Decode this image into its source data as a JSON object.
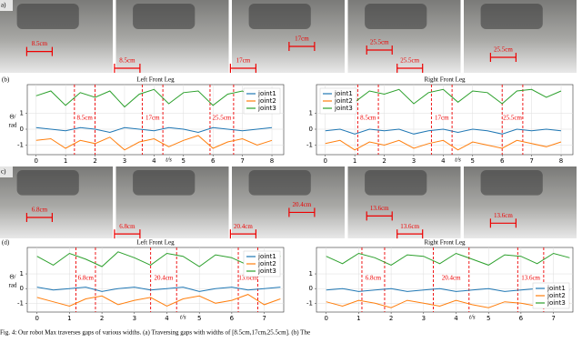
{
  "photos": [
    {
      "label": "a)",
      "images": [
        {
          "labels": [
            "8.5cm"
          ]
        },
        {
          "labels": [
            "8.5cm"
          ]
        },
        {
          "labels": [
            "17cm",
            "17cm"
          ]
        },
        {
          "labels": [
            "25.5cm",
            "25.5cm"
          ]
        },
        {
          "labels": [
            "25.5cm"
          ]
        }
      ]
    },
    {
      "label": "c)",
      "images": [
        {
          "labels": [
            "6.8cm"
          ]
        },
        {
          "labels": [
            "6.8cm"
          ]
        },
        {
          "labels": [
            "20.4cm",
            "20.4cm"
          ]
        },
        {
          "labels": [
            "13.6cm",
            "13.6cm"
          ]
        },
        {
          "labels": [
            "13.6cm"
          ]
        }
      ]
    }
  ],
  "charts": [
    {
      "type": "line",
      "panel": "(b)",
      "title": "Left Front Leg",
      "ylabel": "Θ/\nrad",
      "xlabel": "t/s",
      "xlim": [
        -0.3,
        8.4
      ],
      "ylim": [
        -1.6,
        2.8
      ],
      "xticks": [
        0,
        1,
        2,
        3,
        4,
        5,
        6,
        7,
        8
      ],
      "yticks": [
        -1,
        0,
        1
      ],
      "grid": true,
      "legend": "upper right",
      "x": [
        0,
        0.5,
        1,
        1.5,
        2,
        2.5,
        3,
        3.5,
        4,
        4.5,
        5,
        5.5,
        6,
        6.5,
        7,
        7.5,
        8
      ],
      "gaps": [
        {
          "label": "8.5cm",
          "start": 1.3,
          "end": 2.0
        },
        {
          "label": "17cm",
          "start": 3.6,
          "end": 4.3
        },
        {
          "label": "25.5cm",
          "start": 5.9,
          "end": 6.7
        }
      ],
      "series": [
        {
          "name": "joint1",
          "color": "#1f77b4",
          "values": [
            0.1,
            0.0,
            -0.1,
            0.1,
            0.0,
            -0.2,
            0.1,
            0.0,
            -0.1,
            0.1,
            0.0,
            -0.2,
            0.1,
            0.0,
            -0.1,
            0.0,
            0.1
          ]
        },
        {
          "name": "joint2",
          "color": "#ff7f0e",
          "values": [
            -0.7,
            -0.6,
            -1.2,
            -0.7,
            -0.9,
            -0.5,
            -1.3,
            -0.8,
            -0.6,
            -1.1,
            -0.7,
            -0.4,
            -1.2,
            -0.8,
            -0.6,
            -1.0,
            -0.7
          ]
        },
        {
          "name": "joint3",
          "color": "#2ca02c",
          "values": [
            2.1,
            2.4,
            1.5,
            2.3,
            2.0,
            2.4,
            1.4,
            2.2,
            2.5,
            1.6,
            2.3,
            2.4,
            1.5,
            2.2,
            2.4,
            1.8,
            2.1
          ]
        }
      ]
    },
    {
      "type": "line",
      "panel": null,
      "title": "Right Front Leg",
      "ylabel": null,
      "xlabel": "t/s",
      "xlim": [
        -0.3,
        8.4
      ],
      "ylim": [
        -1.6,
        2.8
      ],
      "xticks": [
        0,
        1,
        2,
        3,
        4,
        5,
        6,
        7,
        8
      ],
      "yticks": [
        -1,
        0,
        1
      ],
      "grid": true,
      "legend": "upper left",
      "x": [
        0,
        0.5,
        1,
        1.5,
        2,
        2.5,
        3,
        3.5,
        4,
        4.5,
        5,
        5.5,
        6,
        6.5,
        7,
        7.5,
        8
      ],
      "gaps": [
        {
          "label": "8.5cm",
          "start": 1.1,
          "end": 1.8
        },
        {
          "label": "17cm",
          "start": 3.6,
          "end": 4.3
        },
        {
          "label": "25.5cm",
          "start": 6.0,
          "end": 6.7
        }
      ],
      "series": [
        {
          "name": "joint1",
          "color": "#1f77b4",
          "values": [
            -0.1,
            0.0,
            -0.3,
            0.0,
            -0.1,
            0.0,
            -0.3,
            -0.1,
            0.0,
            -0.2,
            0.0,
            -0.1,
            -0.3,
            0.0,
            -0.1,
            0.0,
            -0.1
          ]
        },
        {
          "name": "joint2",
          "color": "#ff7f0e",
          "values": [
            -0.9,
            -0.7,
            -1.3,
            -0.8,
            -1.0,
            -0.7,
            -1.2,
            -0.9,
            -0.7,
            -1.3,
            -0.8,
            -1.0,
            -1.2,
            -0.7,
            -0.9,
            -1.1,
            -0.8
          ]
        },
        {
          "name": "joint3",
          "color": "#2ca02c",
          "values": [
            2.3,
            2.5,
            1.7,
            2.4,
            2.2,
            2.5,
            1.6,
            2.3,
            2.5,
            1.7,
            2.4,
            2.3,
            1.6,
            2.4,
            2.5,
            2.0,
            2.4
          ]
        }
      ]
    },
    {
      "type": "line",
      "panel": "(d)",
      "title": "Left Front Leg",
      "ylabel": "Θ/\nrad",
      "xlabel": "t/s",
      "xlim": [
        -0.3,
        7.6
      ],
      "ylim": [
        -1.6,
        2.8
      ],
      "xticks": [
        0,
        1,
        2,
        3,
        4,
        5,
        6,
        7
      ],
      "yticks": [
        -1,
        0,
        1
      ],
      "grid": true,
      "legend": "upper right",
      "x": [
        0,
        0.5,
        1,
        1.5,
        2,
        2.5,
        3,
        3.5,
        4,
        4.5,
        5,
        5.5,
        6,
        6.5,
        7,
        7.5
      ],
      "gaps": [
        {
          "label": "6.8cm",
          "start": 1.2,
          "end": 1.8
        },
        {
          "label": "20.4cm",
          "start": 3.5,
          "end": 4.3
        },
        {
          "label": "13.6cm",
          "start": 6.2,
          "end": 6.8
        }
      ],
      "series": [
        {
          "name": "joint1",
          "color": "#1f77b4",
          "values": [
            0.1,
            -0.1,
            0.0,
            0.1,
            -0.2,
            0.0,
            0.1,
            -0.1,
            0.0,
            0.1,
            -0.2,
            0.0,
            0.1,
            -0.1,
            0.0,
            0.1
          ]
        },
        {
          "name": "joint2",
          "color": "#ff7f0e",
          "values": [
            -0.6,
            -0.9,
            -1.2,
            -0.7,
            -0.5,
            -1.1,
            -0.8,
            -0.6,
            -1.2,
            -0.7,
            -0.5,
            -1.0,
            -0.8,
            -0.4,
            -1.1,
            -0.7
          ]
        },
        {
          "name": "joint3",
          "color": "#2ca02c",
          "values": [
            2.2,
            1.6,
            2.4,
            2.0,
            1.5,
            2.5,
            2.1,
            1.6,
            2.4,
            2.2,
            1.5,
            2.3,
            2.1,
            1.6,
            2.4,
            2.2
          ]
        }
      ]
    },
    {
      "type": "line",
      "panel": null,
      "title": "Right Front Leg",
      "ylabel": null,
      "xlabel": "t/s",
      "xlim": [
        -0.3,
        7.6
      ],
      "ylim": [
        -1.6,
        2.8
      ],
      "xticks": [
        0,
        1,
        2,
        3,
        4,
        5,
        6,
        7
      ],
      "yticks": [
        -1,
        0,
        1
      ],
      "grid": true,
      "legend": "lower right",
      "x": [
        0,
        0.5,
        1,
        1.5,
        2,
        2.5,
        3,
        3.5,
        4,
        4.5,
        5,
        5.5,
        6,
        6.5,
        7,
        7.5
      ],
      "gaps": [
        {
          "label": "6.8cm",
          "start": 1.1,
          "end": 1.8
        },
        {
          "label": "20.4cm",
          "start": 3.3,
          "end": 4.4
        },
        {
          "label": "13.6cm",
          "start": 5.9,
          "end": 6.7
        }
      ],
      "series": [
        {
          "name": "joint1",
          "color": "#1f77b4",
          "values": [
            -0.1,
            0.0,
            -0.2,
            -0.1,
            0.0,
            -0.2,
            -0.1,
            0.0,
            -0.2,
            -0.1,
            0.0,
            -0.2,
            -0.1,
            0.0,
            -0.2,
            -0.1
          ]
        },
        {
          "name": "joint2",
          "color": "#ff7f0e",
          "values": [
            -0.9,
            -1.2,
            -0.8,
            -1.0,
            -1.3,
            -0.8,
            -1.0,
            -1.2,
            -0.8,
            -1.1,
            -1.3,
            -0.9,
            -1.0,
            -1.2,
            -0.8,
            -1.0
          ]
        },
        {
          "name": "joint3",
          "color": "#2ca02c",
          "values": [
            2.2,
            1.7,
            2.4,
            2.1,
            1.6,
            2.3,
            2.2,
            1.7,
            2.4,
            2.0,
            1.6,
            2.3,
            2.2,
            1.7,
            2.4,
            2.1
          ]
        }
      ]
    }
  ],
  "caption": "Fig. 4: Our robot Max traverses gaps of various widths. (a) Traversing gaps with widths of [8.5cm,17cm,25.5cm]. (b) The"
}
